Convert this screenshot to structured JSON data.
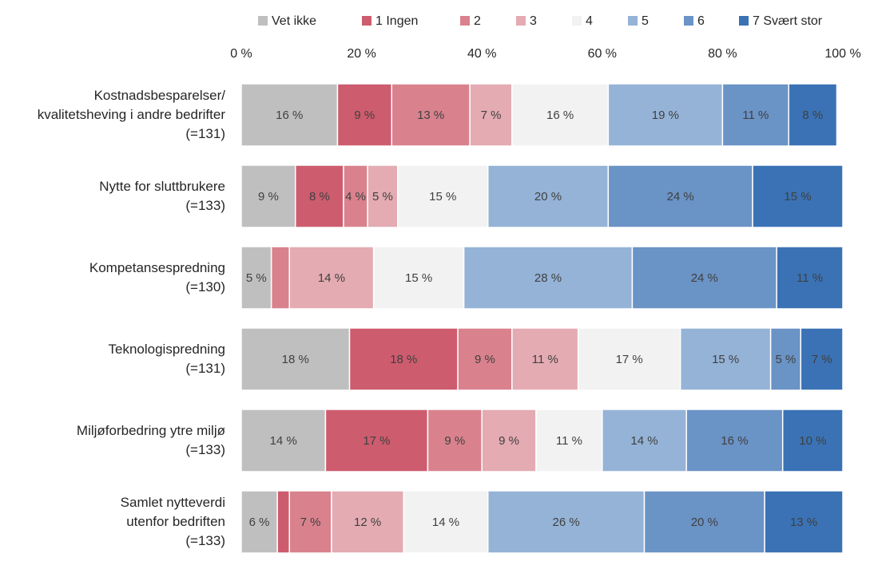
{
  "chart_data": {
    "type": "stacked-bar-horizontal",
    "categories": [
      "Kostnadsbesparelser/\nkvalitetsheving i andre bedrifter\n(=131)",
      "Nytte for sluttbrukere\n(=133)",
      "Kompetansespredning\n(=130)",
      "Teknologispredning\n(=131)",
      "Miljøforbedring ytre miljø\n(=133)",
      "Samlet nytteverdi\nutenfor bedriften\n(=133)"
    ],
    "series": [
      {
        "name": "Vet ikke",
        "color": "#bfbfbf",
        "values": [
          16,
          9,
          5,
          18,
          14,
          6
        ],
        "value_labels": [
          "16 %",
          "9 %",
          "5 %",
          "18 %",
          "14 %",
          "6 %"
        ]
      },
      {
        "name": "1 Ingen",
        "color": "#cd5c6e",
        "values": [
          9,
          8,
          0,
          18,
          17,
          2
        ],
        "value_labels": [
          "9 %",
          "8 %",
          null,
          "18 %",
          "17 %",
          null
        ]
      },
      {
        "name": "2",
        "color": "#d9828e",
        "values": [
          13,
          4,
          3,
          9,
          9,
          7
        ],
        "value_labels": [
          "13 %",
          "4 %",
          null,
          "9 %",
          "9 %",
          "7 %"
        ]
      },
      {
        "name": "3",
        "color": "#e4abb2",
        "values": [
          7,
          5,
          14,
          11,
          9,
          12
        ],
        "value_labels": [
          "7 %",
          "5 %",
          "14 %",
          "11 %",
          "9 %",
          "12 %"
        ]
      },
      {
        "name": "4",
        "color": "#f2f2f2",
        "values": [
          16,
          15,
          15,
          17,
          11,
          14
        ],
        "value_labels": [
          "16 %",
          "15 %",
          "15 %",
          "17 %",
          "11 %",
          "14 %"
        ]
      },
      {
        "name": "5",
        "color": "#95b3d7",
        "values": [
          19,
          20,
          28,
          15,
          14,
          26
        ],
        "value_labels": [
          "19 %",
          "20 %",
          "28 %",
          "15 %",
          "14 %",
          "26 %"
        ]
      },
      {
        "name": "6",
        "color": "#6a93c6",
        "values": [
          11,
          24,
          24,
          5,
          16,
          20
        ],
        "value_labels": [
          "11 %",
          "24 %",
          "24 %",
          "5 %",
          "16 %",
          "20 %"
        ]
      },
      {
        "name": "7 Svært stor",
        "color": "#3a72b5",
        "values": [
          8,
          15,
          11,
          7,
          10,
          13
        ],
        "value_labels": [
          "8 %",
          "15 %",
          "11 %",
          "7 %",
          "10 %",
          "13 %"
        ]
      }
    ],
    "xlim": [
      0,
      100
    ],
    "xticks": [
      {
        "value": 0,
        "label": "0 %"
      },
      {
        "value": 20,
        "label": "20 %"
      },
      {
        "value": 40,
        "label": "40 %"
      },
      {
        "value": 60,
        "label": "60 %"
      },
      {
        "value": 80,
        "label": "80 %"
      },
      {
        "value": 100,
        "label": "100 %"
      }
    ],
    "legend": "top"
  }
}
